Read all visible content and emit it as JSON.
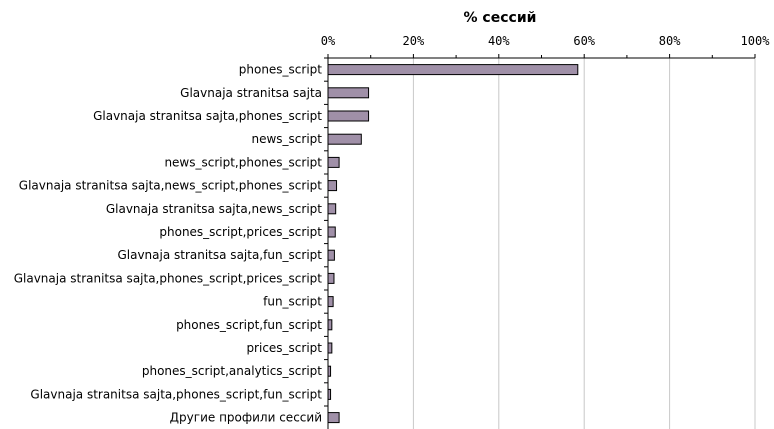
{
  "chart_data": {
    "type": "bar",
    "orientation": "horizontal",
    "title": "% сессий",
    "xlabel": "",
    "ylabel": "",
    "xlim": [
      0,
      100
    ],
    "x_ticks": [
      "0%",
      "20%",
      "40%",
      "60%",
      "80%",
      "100%"
    ],
    "x_axis_position": "top",
    "grid": true,
    "categories": [
      "phones_script",
      "Glavnaja stranitsa sajta",
      "Glavnaja stranitsa sajta,phones_script",
      "news_script",
      "news_script,phones_script",
      "Glavnaja stranitsa sajta,news_script,phones_script",
      "Glavnaja stranitsa sajta,news_script",
      "phones_script,prices_script",
      "Glavnaja stranitsa sajta,fun_script",
      "Glavnaja stranitsa sajta,phones_script,prices_script",
      "fun_script",
      "phones_script,fun_script",
      "prices_script",
      "phones_script,analytics_script",
      "Glavnaja stranitsa sajta,phones_script,fun_script",
      "Другие профили сессий"
    ],
    "values": [
      58.5,
      9.5,
      9.5,
      7.8,
      2.6,
      2.0,
      1.8,
      1.7,
      1.5,
      1.4,
      1.2,
      0.9,
      0.9,
      0.6,
      0.6,
      2.6
    ],
    "bar_color": "#a090a8"
  }
}
